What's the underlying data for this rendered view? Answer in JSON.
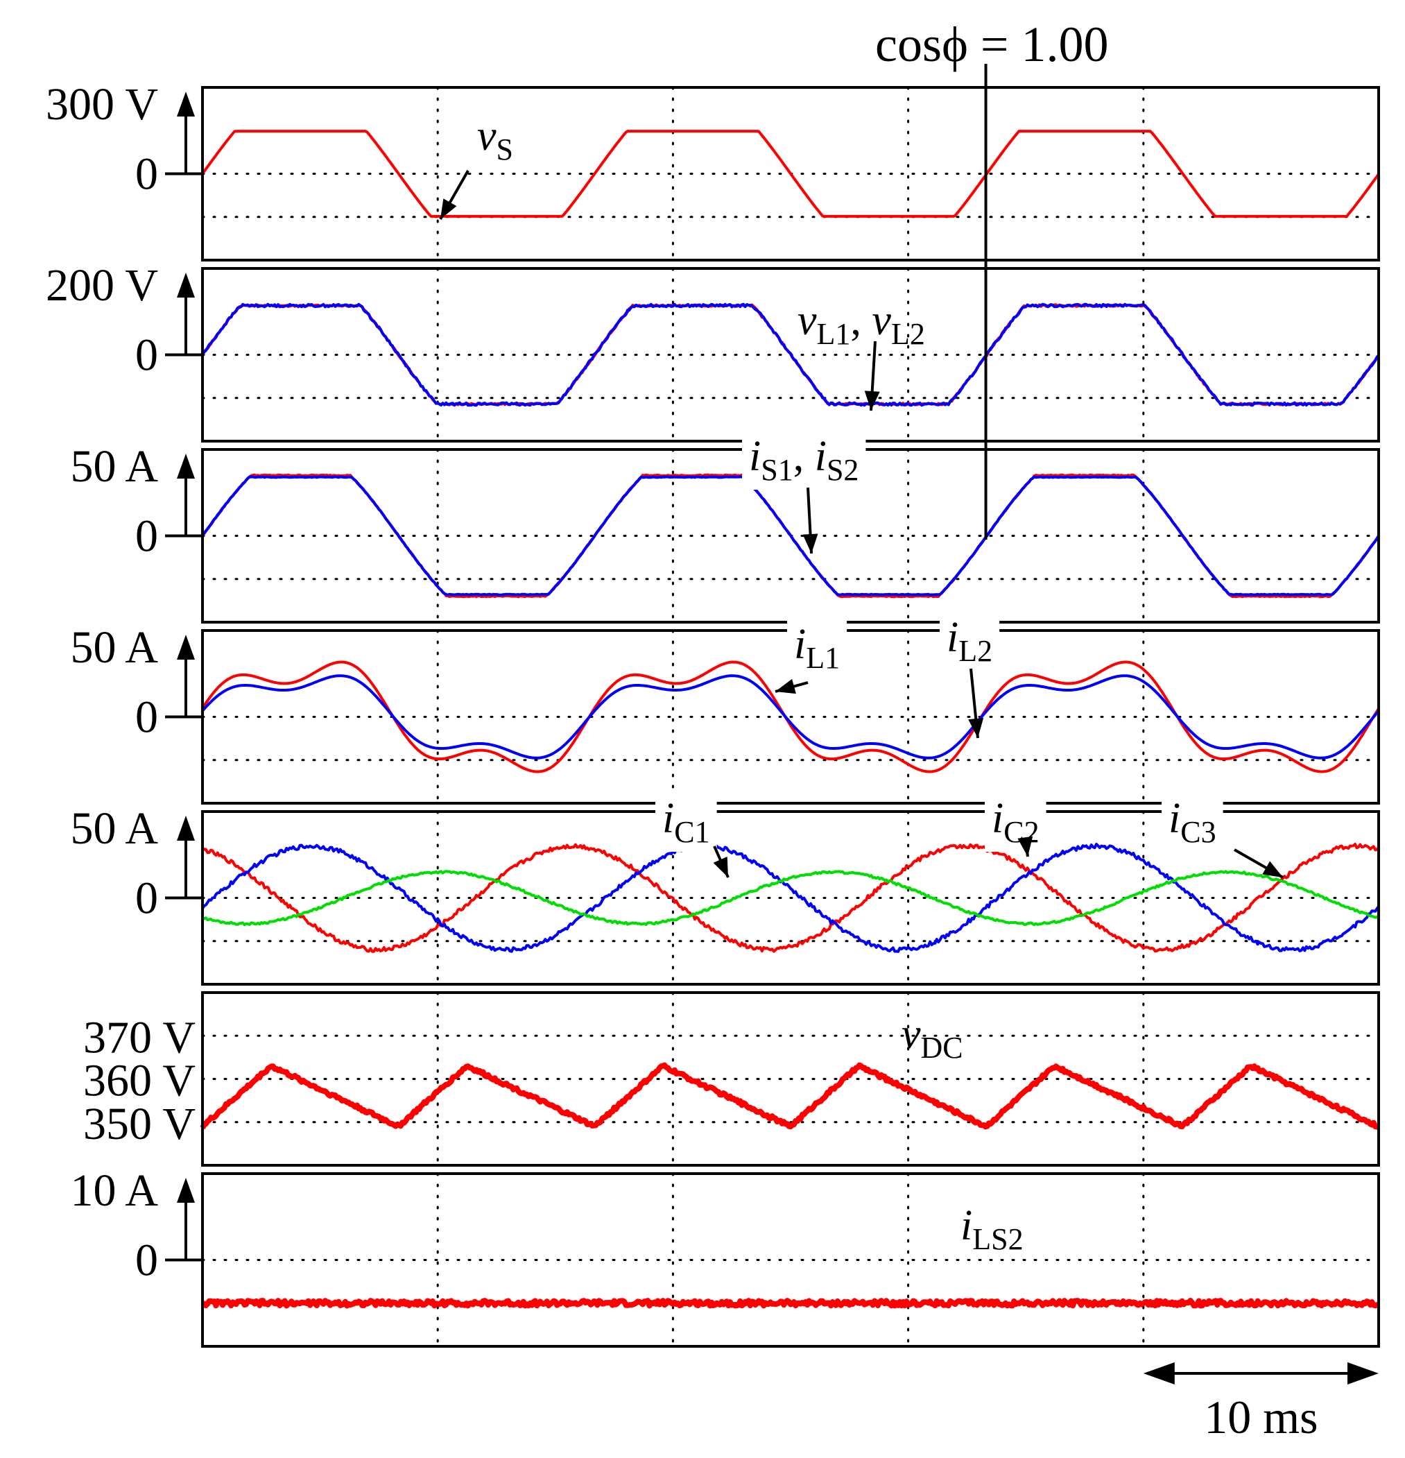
{
  "chart_data": {
    "type": "line",
    "title": "cosϕ = 1.00",
    "time_base": {
      "label": "10 ms",
      "value_ms": 10
    },
    "x_range_ms": [
      0,
      50
    ],
    "marker_time_ms": 33.3,
    "colors": {
      "red": "#ff0000",
      "blue": "#0000ff",
      "green": "#00dd00"
    },
    "panels": [
      {
        "id": "vs",
        "unit": "V",
        "ylim": [
          -300,
          300
        ],
        "tick_labels": [
          {
            "text": "300 V",
            "value": 300
          },
          {
            "text": "0",
            "value": 0
          }
        ],
        "annotation": {
          "main": "v",
          "sub": "S"
        },
        "series": [
          {
            "name": "vS",
            "color": "red",
            "shape": "clipped_sine",
            "amplitude": 300,
            "peak": 148,
            "period_ms": 16.67,
            "phase_deg": 0,
            "noise": 0
          }
        ]
      },
      {
        "id": "vl",
        "unit": "V",
        "ylim": [
          -200,
          200
        ],
        "tick_labels": [
          {
            "text": "200 V",
            "value": 200
          },
          {
            "text": "0",
            "value": 0
          }
        ],
        "annotation": {
          "main": "v",
          "sub": "L1",
          "sep": ", ",
          "main2": "v",
          "sub2": "L2"
        },
        "series": [
          {
            "name": "vL1",
            "color": "red",
            "shape": "clipped_sine",
            "amplitude": 200,
            "peak": 114,
            "period_ms": 16.67,
            "phase_deg": 0,
            "noise": 2
          },
          {
            "name": "vL2",
            "color": "blue",
            "shape": "clipped_sine",
            "amplitude": 200,
            "peak": 114,
            "period_ms": 16.67,
            "phase_deg": 0,
            "noise": 3
          }
        ]
      },
      {
        "id": "is",
        "unit": "A",
        "ylim": [
          -50,
          50
        ],
        "tick_labels": [
          {
            "text": "50 A",
            "value": 50
          },
          {
            "text": "0",
            "value": 0
          }
        ],
        "annotation": {
          "main": "i",
          "sub": "S1",
          "sep": ", ",
          "main2": "i",
          "sub2": "S2"
        },
        "series": [
          {
            "name": "iS1",
            "color": "red",
            "shape": "clipped_sine",
            "amplitude": 50,
            "peak": 35,
            "period_ms": 16.67,
            "phase_deg": 0,
            "noise": 0.3
          },
          {
            "name": "iS2",
            "color": "blue",
            "shape": "clipped_sine",
            "amplitude": 50,
            "peak": 34,
            "period_ms": 16.67,
            "phase_deg": 0,
            "noise": 0.2
          }
        ]
      },
      {
        "id": "il",
        "unit": "A",
        "ylim": [
          -50,
          50
        ],
        "tick_labels": [
          {
            "text": "50 A",
            "value": 50
          },
          {
            "text": "0",
            "value": 0
          }
        ],
        "annotations": [
          {
            "main": "i",
            "sub": "L1"
          },
          {
            "main": "i",
            "sub": "L2"
          }
        ],
        "series": [
          {
            "name": "iL1",
            "color": "red",
            "shape": "harmonic",
            "h1": 30,
            "h3": 10,
            "period_ms": 16.67,
            "noise": 0
          },
          {
            "name": "iL2",
            "color": "blue",
            "shape": "harmonic",
            "h1": 23,
            "h3": 7,
            "period_ms": 16.67,
            "noise": 0
          }
        ]
      },
      {
        "id": "ic",
        "unit": "A",
        "ylim": [
          -50,
          50
        ],
        "tick_labels": [
          {
            "text": "50 A",
            "value": 50
          },
          {
            "text": "0",
            "value": 0
          }
        ],
        "annotations": [
          {
            "main": "i",
            "sub": "C1"
          },
          {
            "main": "i",
            "sub": "C2"
          },
          {
            "main": "i",
            "sub": "C3"
          }
        ],
        "series": [
          {
            "name": "iC1",
            "color": "red",
            "shape": "sine",
            "amplitude": 30,
            "period_ms": 16.67,
            "phase_deg": 110,
            "noise": 1.2
          },
          {
            "name": "iC2",
            "color": "blue",
            "shape": "sine",
            "amplitude": 30,
            "period_ms": 16.67,
            "phase_deg": -10,
            "noise": 1.2
          },
          {
            "name": "iC3",
            "color": "green",
            "shape": "sine",
            "amplitude": 15,
            "period_ms": 16.67,
            "phase_deg": 230,
            "noise": 0.6
          }
        ]
      },
      {
        "id": "vdc",
        "unit": "V",
        "ylim": [
          340,
          380
        ],
        "tick_labels": [
          {
            "text": "370 V",
            "value": 370
          },
          {
            "text": "360 V",
            "value": 360
          },
          {
            "text": "350 V",
            "value": 350
          }
        ],
        "annotation": {
          "main": "v",
          "sub": "DC"
        },
        "series": [
          {
            "name": "vDC",
            "color": "red",
            "shape": "triangle_ripple",
            "mean": 356,
            "ripple": 7,
            "period_ms": 8.33,
            "noise": 0.4
          }
        ]
      },
      {
        "id": "ils2",
        "unit": "A",
        "ylim": [
          -10,
          10
        ],
        "tick_labels": [
          {
            "text": "10 A",
            "value": 10
          },
          {
            "text": "0",
            "value": 0
          }
        ],
        "annotation": {
          "main": "i",
          "sub": "LS2"
        },
        "series": [
          {
            "name": "iLS2",
            "color": "red",
            "shape": "dc",
            "mean": -5,
            "noise": 0.3
          }
        ]
      }
    ]
  }
}
